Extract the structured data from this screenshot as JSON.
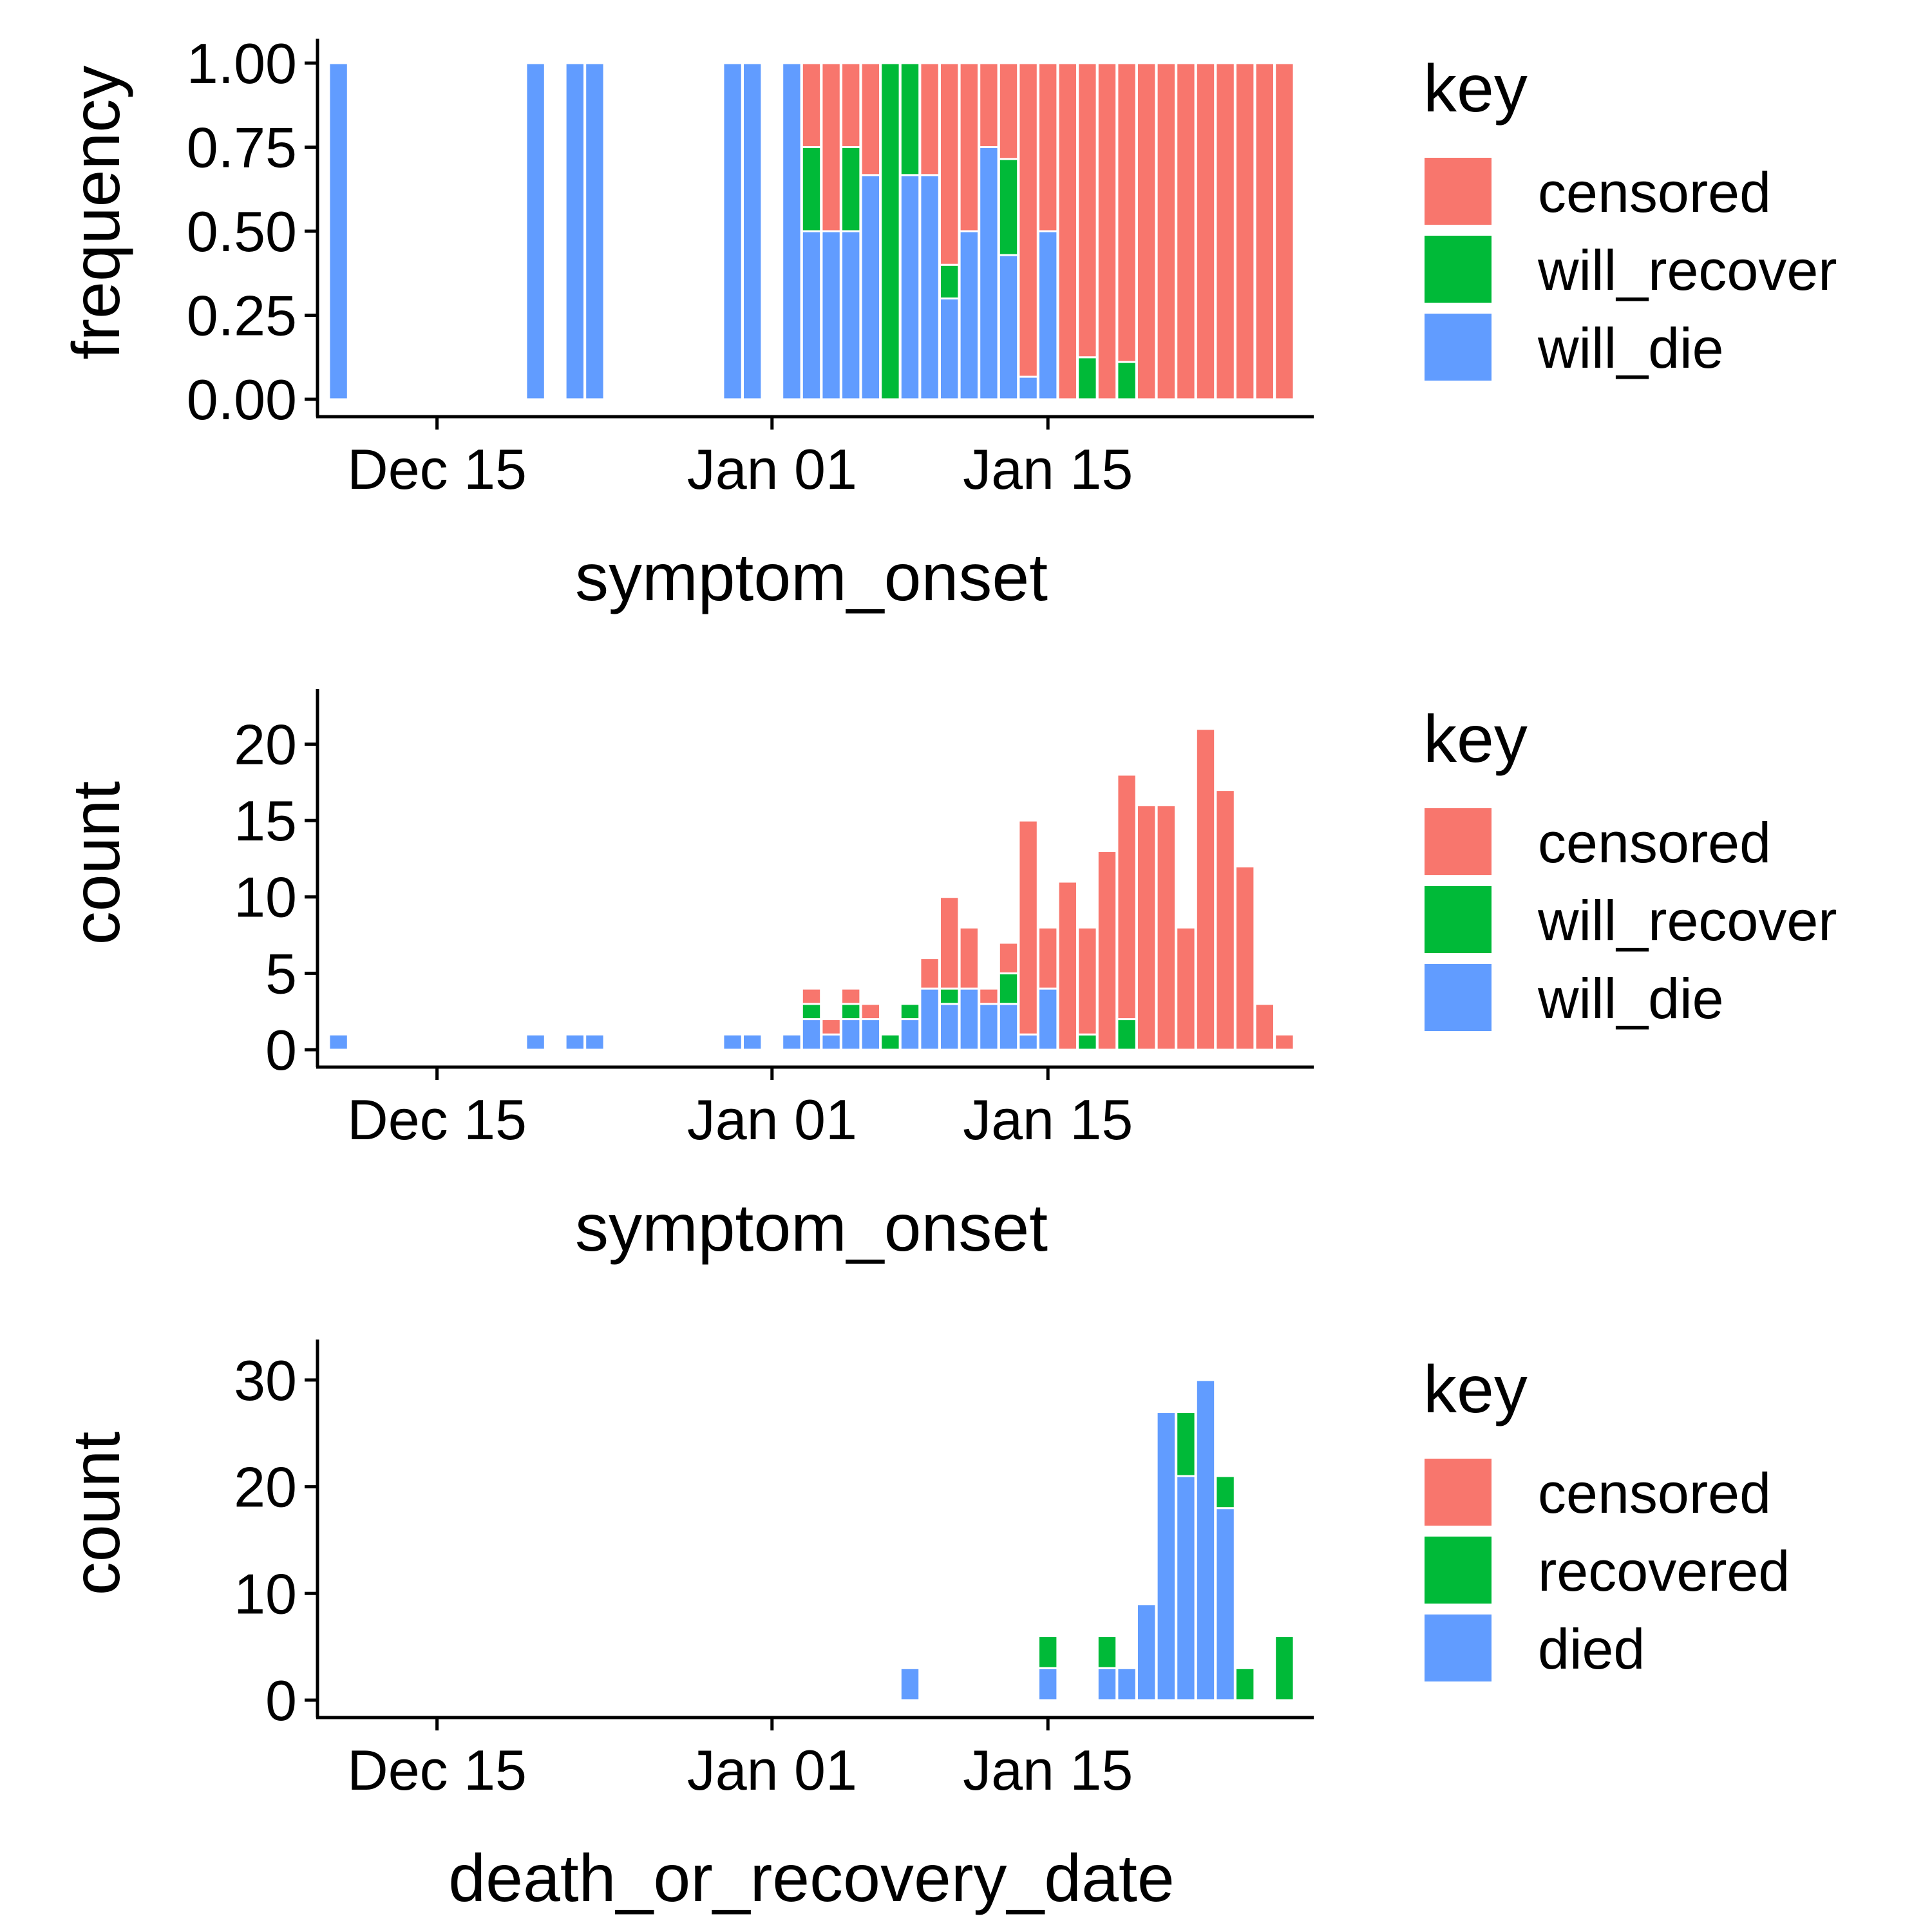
{
  "chart_data": [
    {
      "type": "bar",
      "stacked": true,
      "position": "fill",
      "xlabel": "symptom_onset",
      "ylabel": "frequency",
      "xlim": [
        "2019-12-09",
        "2020-01-28"
      ],
      "ylim": [
        0,
        1
      ],
      "x_ticks": [
        {
          "date": "2019-12-15",
          "label": "Dec 15"
        },
        {
          "date": "2020-01-01",
          "label": "Jan 01"
        },
        {
          "date": "2020-01-15",
          "label": "Jan 15"
        }
      ],
      "y_ticks": [
        {
          "value": 0,
          "label": "0.00"
        },
        {
          "value": 0.25,
          "label": "0.25"
        },
        {
          "value": 0.5,
          "label": "0.50"
        },
        {
          "value": 0.75,
          "label": "0.75"
        },
        {
          "value": 1,
          "label": "1.00"
        }
      ],
      "legend": {
        "title": "key",
        "position": "right",
        "entries": [
          {
            "name": "censored",
            "color": "#F8766D"
          },
          {
            "name": "will_recover",
            "color": "#00BA38"
          },
          {
            "name": "will_die",
            "color": "#619CFF"
          }
        ]
      },
      "stack_order": [
        "will_die",
        "will_recover",
        "censored"
      ],
      "bars": [
        {
          "date": "2019-12-10",
          "will_die": 1,
          "will_recover": 0,
          "censored": 0
        },
        {
          "date": "2019-12-20",
          "will_die": 1,
          "will_recover": 0,
          "censored": 0
        },
        {
          "date": "2019-12-22",
          "will_die": 1,
          "will_recover": 0,
          "censored": 0
        },
        {
          "date": "2019-12-23",
          "will_die": 1,
          "will_recover": 0,
          "censored": 0
        },
        {
          "date": "2019-12-30",
          "will_die": 1,
          "will_recover": 0,
          "censored": 0
        },
        {
          "date": "2019-12-31",
          "will_die": 1,
          "will_recover": 0,
          "censored": 0
        },
        {
          "date": "2020-01-02",
          "will_die": 1,
          "will_recover": 0,
          "censored": 0
        },
        {
          "date": "2020-01-03",
          "will_die": 0.5,
          "will_recover": 0.25,
          "censored": 0.25
        },
        {
          "date": "2020-01-04",
          "will_die": 0.5,
          "will_recover": 0,
          "censored": 0.5
        },
        {
          "date": "2020-01-05",
          "will_die": 0.5,
          "will_recover": 0.25,
          "censored": 0.25
        },
        {
          "date": "2020-01-06",
          "will_die": 0.667,
          "will_recover": 0,
          "censored": 0.333
        },
        {
          "date": "2020-01-07",
          "will_die": 0,
          "will_recover": 1,
          "censored": 0
        },
        {
          "date": "2020-01-08",
          "will_die": 0.667,
          "will_recover": 0.333,
          "censored": 0
        },
        {
          "date": "2020-01-09",
          "will_die": 0.667,
          "will_recover": 0,
          "censored": 0.333
        },
        {
          "date": "2020-01-10",
          "will_die": 0.3,
          "will_recover": 0.1,
          "censored": 0.6
        },
        {
          "date": "2020-01-11",
          "will_die": 0.5,
          "will_recover": 0,
          "censored": 0.5
        },
        {
          "date": "2020-01-12",
          "will_die": 0.75,
          "will_recover": 0,
          "censored": 0.25
        },
        {
          "date": "2020-01-13",
          "will_die": 0.429,
          "will_recover": 0.286,
          "censored": 0.285
        },
        {
          "date": "2020-01-14",
          "will_die": 0.067,
          "will_recover": 0,
          "censored": 0.933
        },
        {
          "date": "2020-01-15",
          "will_die": 0.5,
          "will_recover": 0,
          "censored": 0.5
        },
        {
          "date": "2020-01-16",
          "will_die": 0,
          "will_recover": 0,
          "censored": 1
        },
        {
          "date": "2020-01-17",
          "will_die": 0,
          "will_recover": 0.125,
          "censored": 0.875
        },
        {
          "date": "2020-01-18",
          "will_die": 0,
          "will_recover": 0,
          "censored": 1
        },
        {
          "date": "2020-01-19",
          "will_die": 0,
          "will_recover": 0.111,
          "censored": 0.889
        },
        {
          "date": "2020-01-20",
          "will_die": 0,
          "will_recover": 0,
          "censored": 1
        },
        {
          "date": "2020-01-21",
          "will_die": 0,
          "will_recover": 0,
          "censored": 1
        },
        {
          "date": "2020-01-22",
          "will_die": 0,
          "will_recover": 0,
          "censored": 1
        },
        {
          "date": "2020-01-23",
          "will_die": 0,
          "will_recover": 0,
          "censored": 1
        },
        {
          "date": "2020-01-24",
          "will_die": 0,
          "will_recover": 0,
          "censored": 1
        },
        {
          "date": "2020-01-25",
          "will_die": 0,
          "will_recover": 0,
          "censored": 1
        },
        {
          "date": "2020-01-26",
          "will_die": 0,
          "will_recover": 0,
          "censored": 1
        },
        {
          "date": "2020-01-27",
          "will_die": 0,
          "will_recover": 0,
          "censored": 1
        }
      ]
    },
    {
      "type": "bar",
      "stacked": true,
      "xlabel": "symptom_onset",
      "ylabel": "count",
      "xlim": [
        "2019-12-09",
        "2020-01-28"
      ],
      "ylim": [
        0,
        22
      ],
      "x_ticks": [
        {
          "date": "2019-12-15",
          "label": "Dec 15"
        },
        {
          "date": "2020-01-01",
          "label": "Jan 01"
        },
        {
          "date": "2020-01-15",
          "label": "Jan 15"
        }
      ],
      "y_ticks": [
        {
          "value": 0,
          "label": "0"
        },
        {
          "value": 5,
          "label": "5"
        },
        {
          "value": 10,
          "label": "10"
        },
        {
          "value": 15,
          "label": "15"
        },
        {
          "value": 20,
          "label": "20"
        }
      ],
      "legend": {
        "title": "key",
        "position": "right",
        "entries": [
          {
            "name": "censored",
            "color": "#F8766D"
          },
          {
            "name": "will_recover",
            "color": "#00BA38"
          },
          {
            "name": "will_die",
            "color": "#619CFF"
          }
        ]
      },
      "stack_order": [
        "will_die",
        "will_recover",
        "censored"
      ],
      "bars": [
        {
          "date": "2019-12-10",
          "will_die": 1,
          "will_recover": 0,
          "censored": 0
        },
        {
          "date": "2019-12-20",
          "will_die": 1,
          "will_recover": 0,
          "censored": 0
        },
        {
          "date": "2019-12-22",
          "will_die": 1,
          "will_recover": 0,
          "censored": 0
        },
        {
          "date": "2019-12-23",
          "will_die": 1,
          "will_recover": 0,
          "censored": 0
        },
        {
          "date": "2019-12-30",
          "will_die": 1,
          "will_recover": 0,
          "censored": 0
        },
        {
          "date": "2019-12-31",
          "will_die": 1,
          "will_recover": 0,
          "censored": 0
        },
        {
          "date": "2020-01-02",
          "will_die": 1,
          "will_recover": 0,
          "censored": 0
        },
        {
          "date": "2020-01-03",
          "will_die": 2,
          "will_recover": 1,
          "censored": 1
        },
        {
          "date": "2020-01-04",
          "will_die": 1,
          "will_recover": 0,
          "censored": 1
        },
        {
          "date": "2020-01-05",
          "will_die": 2,
          "will_recover": 1,
          "censored": 1
        },
        {
          "date": "2020-01-06",
          "will_die": 2,
          "will_recover": 0,
          "censored": 1
        },
        {
          "date": "2020-01-07",
          "will_die": 0,
          "will_recover": 1,
          "censored": 0
        },
        {
          "date": "2020-01-08",
          "will_die": 2,
          "will_recover": 1,
          "censored": 0
        },
        {
          "date": "2020-01-09",
          "will_die": 4,
          "will_recover": 0,
          "censored": 2
        },
        {
          "date": "2020-01-10",
          "will_die": 3,
          "will_recover": 1,
          "censored": 6
        },
        {
          "date": "2020-01-11",
          "will_die": 4,
          "will_recover": 0,
          "censored": 4
        },
        {
          "date": "2020-01-12",
          "will_die": 3,
          "will_recover": 0,
          "censored": 1
        },
        {
          "date": "2020-01-13",
          "will_die": 3,
          "will_recover": 2,
          "censored": 2
        },
        {
          "date": "2020-01-14",
          "will_die": 1,
          "will_recover": 0,
          "censored": 14
        },
        {
          "date": "2020-01-15",
          "will_die": 4,
          "will_recover": 0,
          "censored": 4
        },
        {
          "date": "2020-01-16",
          "will_die": 0,
          "will_recover": 0,
          "censored": 11
        },
        {
          "date": "2020-01-17",
          "will_die": 0,
          "will_recover": 1,
          "censored": 7
        },
        {
          "date": "2020-01-18",
          "will_die": 0,
          "will_recover": 0,
          "censored": 13
        },
        {
          "date": "2020-01-19",
          "will_die": 0,
          "will_recover": 2,
          "censored": 16
        },
        {
          "date": "2020-01-20",
          "will_die": 0,
          "will_recover": 0,
          "censored": 16
        },
        {
          "date": "2020-01-21",
          "will_die": 0,
          "will_recover": 0,
          "censored": 16
        },
        {
          "date": "2020-01-22",
          "will_die": 0,
          "will_recover": 0,
          "censored": 8
        },
        {
          "date": "2020-01-23",
          "will_die": 0,
          "will_recover": 0,
          "censored": 21
        },
        {
          "date": "2020-01-24",
          "will_die": 0,
          "will_recover": 0,
          "censored": 17
        },
        {
          "date": "2020-01-25",
          "will_die": 0,
          "will_recover": 0,
          "censored": 12
        },
        {
          "date": "2020-01-26",
          "will_die": 0,
          "will_recover": 0,
          "censored": 3
        },
        {
          "date": "2020-01-27",
          "will_die": 0,
          "will_recover": 0,
          "censored": 1
        }
      ]
    },
    {
      "type": "bar",
      "stacked": true,
      "xlabel": "death_or_recovery_date",
      "ylabel": "count",
      "xlim": [
        "2019-12-09",
        "2020-01-28"
      ],
      "ylim": [
        0,
        31.5
      ],
      "x_ticks": [
        {
          "date": "2019-12-15",
          "label": "Dec 15"
        },
        {
          "date": "2020-01-01",
          "label": "Jan 01"
        },
        {
          "date": "2020-01-15",
          "label": "Jan 15"
        }
      ],
      "y_ticks": [
        {
          "value": 0,
          "label": "0"
        },
        {
          "value": 10,
          "label": "10"
        },
        {
          "value": 20,
          "label": "20"
        },
        {
          "value": 30,
          "label": "30"
        }
      ],
      "legend": {
        "title": "key",
        "position": "right",
        "entries": [
          {
            "name": "censored",
            "color": "#F8766D"
          },
          {
            "name": "recovered",
            "color": "#00BA38"
          },
          {
            "name": "died",
            "color": "#619CFF"
          }
        ]
      },
      "stack_order": [
        "died",
        "recovered",
        "censored"
      ],
      "bars": [
        {
          "date": "2020-01-08",
          "died": 3,
          "recovered": 0,
          "censored": 0
        },
        {
          "date": "2020-01-15",
          "died": 3,
          "recovered": 3,
          "censored": 0
        },
        {
          "date": "2020-01-18",
          "died": 3,
          "recovered": 3,
          "censored": 0
        },
        {
          "date": "2020-01-19",
          "died": 3,
          "recovered": 0,
          "censored": 0
        },
        {
          "date": "2020-01-20",
          "died": 9,
          "recovered": 0,
          "censored": 0
        },
        {
          "date": "2020-01-21",
          "died": 27,
          "recovered": 0,
          "censored": 0
        },
        {
          "date": "2020-01-22",
          "died": 21,
          "recovered": 6,
          "censored": 0
        },
        {
          "date": "2020-01-23",
          "died": 30,
          "recovered": 0,
          "censored": 0
        },
        {
          "date": "2020-01-24",
          "died": 18,
          "recovered": 3,
          "censored": 0
        },
        {
          "date": "2020-01-25",
          "died": 0,
          "recovered": 3,
          "censored": 0
        },
        {
          "date": "2020-01-27",
          "died": 0,
          "recovered": 6,
          "censored": 0
        }
      ]
    }
  ]
}
